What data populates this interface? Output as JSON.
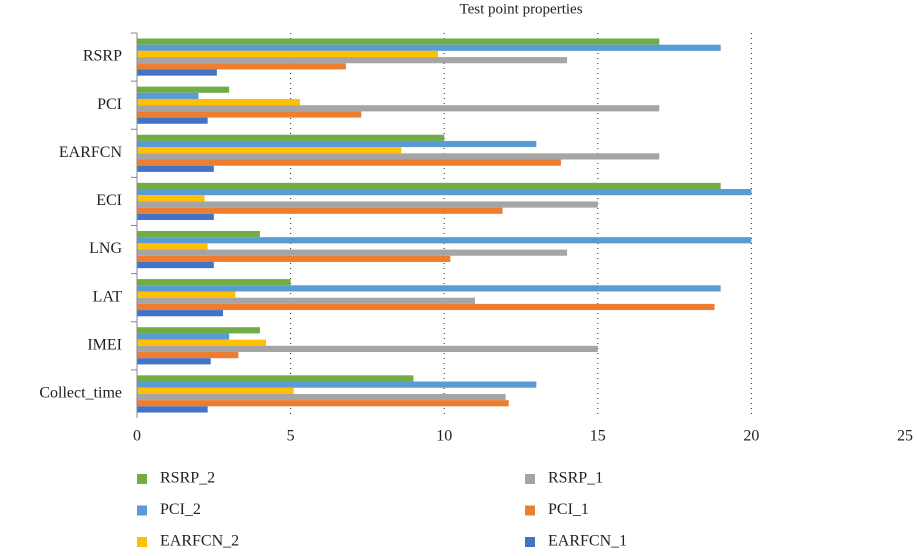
{
  "chart_data": {
    "type": "bar",
    "orientation": "horizontal",
    "title": "Test point properties",
    "categories": [
      "RSRP",
      "PCI",
      "EARFCN",
      "ECI",
      "LNG",
      "LAT",
      "IMEI",
      "Collect_time"
    ],
    "series": [
      {
        "name": "RSRP_2",
        "color": "#70ad47",
        "values": [
          17,
          3,
          10,
          19,
          4,
          5,
          4,
          9
        ]
      },
      {
        "name": "PCI_2",
        "color": "#5b9bd5",
        "values": [
          19,
          2,
          13,
          20,
          20,
          19,
          3,
          13
        ]
      },
      {
        "name": "EARFCN_2",
        "color": "#ffc000",
        "values": [
          9.8,
          5.3,
          8.6,
          2.2,
          2.3,
          3.2,
          4.2,
          5.1
        ]
      },
      {
        "name": "RSRP_1",
        "color": "#a5a5a5",
        "values": [
          14,
          17,
          17,
          15,
          14,
          11,
          15,
          12
        ]
      },
      {
        "name": "PCI_1",
        "color": "#ed7d31",
        "values": [
          6.8,
          7.3,
          13.8,
          11.9,
          10.2,
          18.8,
          3.3,
          12.1
        ]
      },
      {
        "name": "EARFCN_1",
        "color": "#4472c4",
        "values": [
          2.6,
          2.3,
          2.5,
          2.5,
          2.5,
          2.8,
          2.4,
          2.3
        ]
      }
    ],
    "xlim": [
      0,
      25
    ],
    "xticks": [
      0,
      5,
      10,
      15,
      20,
      25
    ],
    "grid": true
  }
}
